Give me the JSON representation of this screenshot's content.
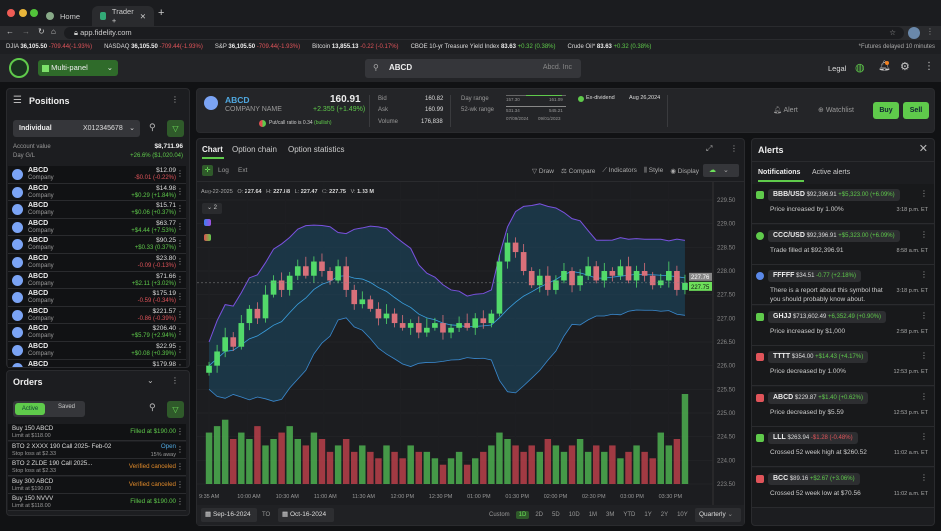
{
  "browser": {
    "tabs": [
      {
        "label": "Home"
      },
      {
        "label": "Trader +"
      }
    ],
    "url": "app.fidelity.com"
  },
  "ticker": {
    "items": [
      {
        "name": "DJIA",
        "value": "36,105.50",
        "change": "-709.44(-1.93%)",
        "dir": "down"
      },
      {
        "name": "NASDAQ",
        "value": "36,105.50",
        "change": "-709.44(-1.93%)",
        "dir": "down"
      },
      {
        "name": "S&P",
        "value": "36,105.50",
        "change": "-709.44(-1.93%)",
        "dir": "down"
      },
      {
        "name": "Bitcoin",
        "value": "13,855.13",
        "change": "-0.22 (-0.17%)",
        "dir": "down"
      },
      {
        "name": "CBOE 10-yr Treasure Yield Index",
        "value": "83.63",
        "change": "+0.32 (0.38%)",
        "dir": "up"
      },
      {
        "name": "Crude Oil*",
        "value": "83.63",
        "change": "+0.32 (0.38%)",
        "dir": "up"
      }
    ],
    "note": "*Futures delayed 10 minutes"
  },
  "header": {
    "layout": "Multi-panel",
    "search_value": "ABCD",
    "search_hint": "Abcd. Inc",
    "legal": "Legal",
    "accent": "#5fca4b"
  },
  "positions": {
    "title": "Positions",
    "account": "Individual",
    "account_no": "X012345678",
    "account_value_label": "Account value",
    "account_value": "$8,711.96",
    "day_gl_label": "Day G/L",
    "day_gl": "+26.6% ($1,020.04)",
    "items": [
      {
        "symbol": "ABCD",
        "name": "Company",
        "price": "$12.09",
        "change": "-$0.01 (-0.22%)",
        "dir": "down"
      },
      {
        "symbol": "ABCD",
        "name": "Company",
        "price": "$14.98",
        "change": "+$0.29 (+1.84%)",
        "dir": "up"
      },
      {
        "symbol": "ABCD",
        "name": "Company",
        "price": "$15.71",
        "change": "+$0.06 (+0.37%)",
        "dir": "up"
      },
      {
        "symbol": "ABCD",
        "name": "Company",
        "price": "$63.77",
        "change": "+$4.44 (+7.53%)",
        "dir": "up"
      },
      {
        "symbol": "ABCD",
        "name": "Company",
        "price": "$90.25",
        "change": "+$0.33 (0.37%)",
        "dir": "up"
      },
      {
        "symbol": "ABCD",
        "name": "Company",
        "price": "$23.80",
        "change": "-0.09 (-0.13%)",
        "dir": "down"
      },
      {
        "symbol": "ABCD",
        "name": "Company",
        "price": "$71.66",
        "change": "+$2.11 (+3.02%)",
        "dir": "up"
      },
      {
        "symbol": "ABCD",
        "name": "Company",
        "price": "$175.19",
        "change": "-0.59 (-0.34%)",
        "dir": "down"
      },
      {
        "symbol": "ABCD",
        "name": "Company",
        "price": "$221.57",
        "change": "-0.86 (-0.39%)",
        "dir": "down"
      },
      {
        "symbol": "ABCD",
        "name": "Company",
        "price": "$206.40",
        "change": "+$5.79 (+2.94%)",
        "dir": "up"
      },
      {
        "symbol": "ABCD",
        "name": "Company",
        "price": "$22.95",
        "change": "+$0.08 (+0.39%)",
        "dir": "up"
      },
      {
        "symbol": "ABCD",
        "name": "Company",
        "price": "$179.98",
        "change": "",
        "dir": "up"
      }
    ]
  },
  "orders": {
    "title": "Orders",
    "tabs": [
      "Active",
      "Saved"
    ],
    "items": [
      {
        "title": "Buy 150 ABCD",
        "sub": "Limit at $118.00",
        "status": "Filled at $190.00",
        "cls": "green",
        "extra": ""
      },
      {
        "title": "BTO 2 XXXX 190 Call 2025- Feb-02",
        "sub": "Stop loss at $2.33",
        "status": "Open",
        "cls": "blue",
        "extra": "15% away"
      },
      {
        "title": "BTO 2 ZLDE 190 Call 2025...",
        "sub": "Stop loss at $2.33",
        "status": "Verified canceled",
        "cls": "orange",
        "extra": ""
      },
      {
        "title": "Buy 300 ABCD",
        "sub": "Limit at $190.00",
        "status": "Verified canceled",
        "cls": "orange",
        "extra": ""
      },
      {
        "title": "Buy 150 NVVV",
        "sub": "Limit at $118.00",
        "status": "Filled at $190.00",
        "cls": "green",
        "extra": ""
      }
    ]
  },
  "quote": {
    "symbol": "ABCD",
    "company": "COMPANY NAME",
    "price": "160.91",
    "change": "+2.355 (+1.49%)",
    "putcall": "Put/call ratio is 0.34",
    "putcall_sent": "(bullish)",
    "bid_label": "Bid",
    "bid": "160.82",
    "ask_label": "Ask",
    "ask": "160.99",
    "volume_label": "Volume",
    "volume": "176,838",
    "day_range_label": "Day range",
    "day_low": "157.30",
    "day_high": "161.09",
    "wk52_label": "52-wk range",
    "wk52_low": "531.34",
    "wk52_high": "545.21",
    "wk52_low_date": "07/09/2024",
    "wk52_high_date": "09/01/2023",
    "exdiv_label": "Ex-dividend",
    "exdiv_date": "Aug 26,2024",
    "alert": "Alert",
    "watchlist": "Watchlist",
    "buy": "Buy",
    "sell": "Sell"
  },
  "chart": {
    "tabs": [
      "Chart",
      "Option chain",
      "Option statistics"
    ],
    "log": "Log",
    "ext": "Ext",
    "tools": [
      "Draw",
      "Compare",
      "Indicators",
      "Style",
      "Display"
    ],
    "ohlc": {
      "date": "Aug-22-2025",
      "o": "227.64",
      "h": "227.88",
      "l": "227.47",
      "c": "227.75",
      "v": "1.33 M"
    },
    "study_count": "2",
    "from": "Sep-16-2024",
    "to_label": "TO",
    "to": "Oct-16-2024",
    "ranges": [
      "Custom",
      "1D",
      "2D",
      "5D",
      "10D",
      "1M",
      "3M",
      "YTD",
      "1Y",
      "2Y",
      "10Y",
      "Max"
    ],
    "selected_range": "1D",
    "interval": "Quarterly"
  },
  "chart_data": {
    "type": "candlestick",
    "ylim": [
      223.5,
      229.5
    ],
    "yticks": [
      "229.50",
      "229.00",
      "228.50",
      "228.00",
      "227.50",
      "227.00",
      "226.50",
      "226.00",
      "225.50",
      "225.00",
      "224.50",
      "224.00",
      "223.50"
    ],
    "xticks": [
      "9:35 AM",
      "10:00 AM",
      "10:30 AM",
      "11:00 AM",
      "11:30 AM",
      "12:00 PM",
      "12:30 PM",
      "01:00 PM",
      "01:30 PM",
      "02:00 PM",
      "02:30 PM",
      "03:00 PM",
      "03:30 PM"
    ],
    "last_labels": [
      "227.76",
      "227.75"
    ],
    "closes": [
      226.0,
      226.3,
      226.6,
      226.4,
      226.9,
      227.2,
      227.0,
      227.5,
      227.8,
      227.6,
      227.9,
      228.1,
      227.9,
      228.2,
      228.0,
      227.8,
      228.1,
      227.6,
      227.3,
      227.4,
      227.2,
      227.0,
      227.1,
      226.9,
      226.8,
      226.9,
      226.7,
      226.8,
      226.9,
      226.7,
      226.8,
      226.9,
      226.8,
      227.0,
      226.9,
      227.1,
      228.2,
      228.6,
      228.4,
      228.0,
      227.7,
      227.9,
      227.6,
      227.8,
      228.0,
      227.7,
      227.9,
      228.1,
      227.8,
      228.0,
      227.9,
      228.1,
      227.8,
      228.0,
      227.9,
      227.7,
      227.8,
      228.0,
      227.6,
      227.75
    ],
    "volumes": [
      8,
      9,
      10,
      7,
      8,
      7,
      9,
      6,
      7,
      8,
      9,
      7,
      6,
      8,
      7,
      5,
      6,
      7,
      5,
      6,
      5,
      4,
      6,
      5,
      4,
      6,
      5,
      5,
      4,
      3,
      4,
      5,
      3,
      4,
      5,
      6,
      8,
      7,
      6,
      5,
      6,
      5,
      7,
      6,
      5,
      6,
      7,
      5,
      6,
      5,
      6,
      4,
      5,
      6,
      5,
      4,
      8,
      6,
      7,
      14
    ],
    "colors": {
      "up": "#52d96a",
      "down": "#d9707a",
      "band": "#3a2d8f"
    }
  },
  "alerts": {
    "title": "Alerts",
    "tabs": [
      "Notifications",
      "Active alerts"
    ],
    "items": [
      {
        "symbol": "BBB/USD",
        "price": "$92,396.91",
        "change": "+$5,323.00 (+6.09%)",
        "dir": "up",
        "msg": "Price increased by 1.00%",
        "time": "3:18 p.m. ET",
        "icon": "price-up"
      },
      {
        "symbol": "CCC/USD",
        "price": "$92,396.91",
        "change": "+$5,323.00 (+6.09%)",
        "dir": "up",
        "msg": "Trade filled at $92,396.91",
        "time": "8:58 a.m. ET",
        "icon": "check"
      },
      {
        "symbol": "FFFFF",
        "price": "$34.51",
        "change": "-0.77 (+2.18%)",
        "dir": "up",
        "msg": "There is a report about this symbol that you should probably know about.",
        "time": "3:18 p.m. ET",
        "icon": "info"
      },
      {
        "symbol": "GHJJ",
        "price": "$713,602.49",
        "change": "+6,352.49 (+0.90%)",
        "dir": "up",
        "msg": "Price increased by $1,000",
        "time": "2:58 p.m. ET",
        "icon": "price-up"
      },
      {
        "symbol": "TTTT",
        "price": "$354.00",
        "change": "+$14.43 (+4.17%)",
        "dir": "up",
        "msg": "Price decreased by 1.00%",
        "time": "12:53 p.m. ET",
        "icon": "price-down"
      },
      {
        "symbol": "ABCD",
        "price": "$229.87",
        "change": "+$1.40 (+0.62%)",
        "dir": "up",
        "msg": "Price decreased by $5.59",
        "time": "12:53 p.m. ET",
        "icon": "price-down"
      },
      {
        "symbol": "LLL",
        "price": "$263.94",
        "change": "-$1.28 (-0.48%)",
        "dir": "down",
        "msg": "Crossed 52 week high at $260.52",
        "time": "11:02 a.m. ET",
        "icon": "price-up"
      },
      {
        "symbol": "BCC",
        "price": "$89.16",
        "change": "+$2.67 (+3.06%)",
        "dir": "up",
        "msg": "Crossed 52 week low at $70.56",
        "time": "11:02 a.m. ET",
        "icon": "price-down"
      }
    ]
  }
}
